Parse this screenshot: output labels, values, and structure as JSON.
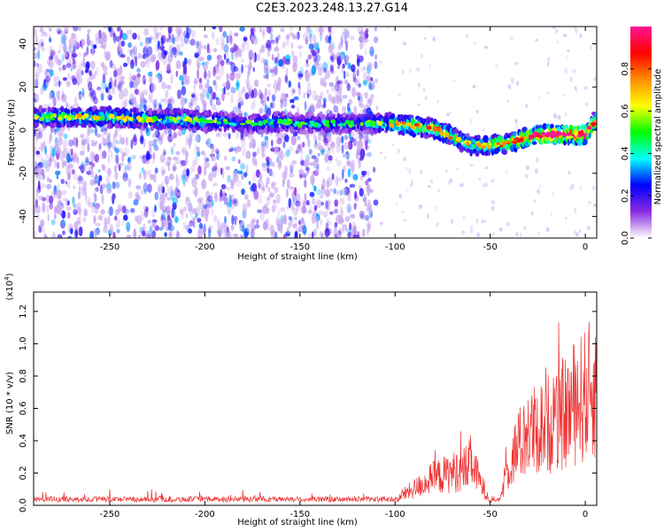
{
  "page": {
    "title": "C2E3.2023.248.13.27.G14"
  },
  "chart_data": [
    {
      "type": "heatmap",
      "title": "C2E3.2023.248.13.27.G14",
      "xlabel": "Height of straight line (km)",
      "ylabel": "Frequency (Hz)",
      "xlim": [
        -290,
        6
      ],
      "ylim": [
        -50,
        48
      ],
      "xticks": [
        -250,
        -200,
        -150,
        -100,
        -50,
        0
      ],
      "yticks": [
        -40,
        -20,
        0,
        20,
        40
      ],
      "colorbar": {
        "label": "Normalized spectral amplitude",
        "range": [
          0.0,
          1.0
        ],
        "ticks": [
          "0.0",
          "0.2",
          "0.4",
          "0.6",
          "0.8"
        ],
        "colormap": [
          "#ffffff",
          "#8a2be2",
          "#0000ff",
          "#00ffff",
          "#00ff00",
          "#ffff00",
          "#ff8c00",
          "#ff0000",
          "#ff1493"
        ]
      },
      "ridge": {
        "x": [
          -288,
          -270,
          -250,
          -230,
          -210,
          -200,
          -190,
          -180,
          -170,
          -160,
          -150,
          -140,
          -130,
          -120,
          -110,
          -100,
          -90,
          -80,
          -70,
          -60,
          -50,
          -40,
          -30,
          -20,
          -10,
          0,
          5
        ],
        "y": [
          6,
          6,
          6,
          5,
          5,
          4,
          4,
          3,
          3,
          4,
          3,
          3,
          3,
          3,
          3,
          3,
          2,
          1,
          -3,
          -7,
          -7,
          -6,
          -3,
          -2,
          -2,
          -2,
          4
        ],
        "peak": [
          0.35,
          0.45,
          0.45,
          0.4,
          0.4,
          0.35,
          0.3,
          0.25,
          0.3,
          0.35,
          0.25,
          0.25,
          0.3,
          0.25,
          0.35,
          0.45,
          0.6,
          0.55,
          0.5,
          0.45,
          0.55,
          0.65,
          0.75,
          0.85,
          0.9,
          0.9,
          0.6
        ]
      },
      "noise_region_xlim": [
        -290,
        -110
      ]
    },
    {
      "type": "line",
      "xlabel": "Height of straight line (km)",
      "ylabel": "SNR (10 * v/v)",
      "y_multiplier": "(x10",
      "y_multiplier_exp": "4",
      "y_multiplier_close": ")",
      "xlim": [
        -290,
        6
      ],
      "ylim": [
        0,
        1.32
      ],
      "xticks": [
        -250,
        -200,
        -150,
        -100,
        -50,
        0
      ],
      "yticks": [
        "0.0",
        "0.2",
        "0.4",
        "0.6",
        "0.8",
        "1.0",
        "1.2"
      ],
      "color": "#ee3333",
      "envelope": {
        "x": [
          -290,
          -250,
          -200,
          -150,
          -110,
          -100,
          -90,
          -80,
          -70,
          -62,
          -60,
          -55,
          -50,
          -45,
          -42,
          -40,
          -35,
          -30,
          -25,
          -20,
          -15,
          -10,
          -5,
          0,
          5
        ],
        "y": [
          0.04,
          0.05,
          0.04,
          0.03,
          0.03,
          0.06,
          0.15,
          0.25,
          0.3,
          0.35,
          0.4,
          0.2,
          0.06,
          0.05,
          0.25,
          0.4,
          0.55,
          0.65,
          0.7,
          0.75,
          0.8,
          0.85,
          0.95,
          1.0,
          1.1
        ]
      }
    }
  ]
}
